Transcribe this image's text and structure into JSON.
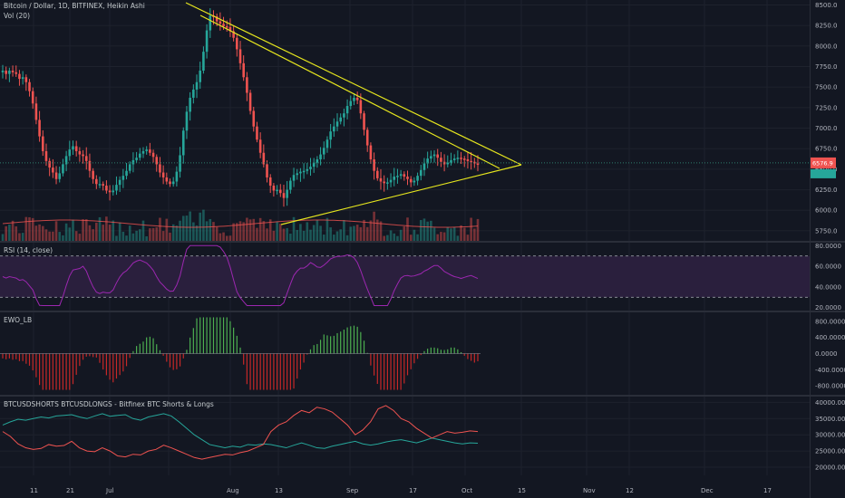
{
  "colors": {
    "background": "#131722",
    "grid": "#1e222d",
    "up": "#26a69a",
    "down": "#ef5350",
    "trendline": "#e6e61e",
    "rsi": "#9c27b0",
    "rsi_band": "#2a1f3d",
    "shorts": "#ef5350",
    "longs": "#26a69a",
    "volume_ma": "#ef5350"
  },
  "panes": {
    "price": {
      "title": "Bitcoin / Dollar, 1D, BITFINEX, Heikin Ashi",
      "subtitle": "Vol (20)"
    },
    "rsi": {
      "title": "RSI (14, close)"
    },
    "ewo": {
      "title": "EWO_LB"
    },
    "shorts": {
      "title": "BTCUSDSHORTS BTCUSDLONGS - Bitfinex BTC Shorts & Longs"
    }
  },
  "last_price_label": "6576.9",
  "x_axis": {
    "labels": [
      "11",
      "21",
      "Jul",
      "Aug",
      "13",
      "Sep",
      "17",
      "Oct",
      "15",
      "Nov",
      "12",
      "Dec",
      "17"
    ]
  },
  "chart_data": [
    {
      "type": "candlestick",
      "title": "Bitcoin / Dollar, 1D, BITFINEX, Heikin Ashi",
      "y_ticks": [
        "8500.0",
        "8250.0",
        "8000.0",
        "7750.0",
        "7500.0",
        "7250.0",
        "7000.0",
        "6750.0",
        "6500.0",
        "6250.0",
        "6000.0",
        "5750.0"
      ],
      "ylim": [
        5650,
        8560
      ],
      "closes": [
        7700,
        7660,
        7700,
        7680,
        7660,
        7600,
        7620,
        7560,
        7450,
        7300,
        7100,
        6900,
        6720,
        6600,
        6520,
        6460,
        6380,
        6450,
        6560,
        6660,
        6740,
        6780,
        6720,
        6680,
        6660,
        6600,
        6480,
        6380,
        6320,
        6320,
        6300,
        6240,
        6220,
        6240,
        6310,
        6370,
        6420,
        6480,
        6560,
        6610,
        6640,
        6690,
        6720,
        6740,
        6700,
        6650,
        6560,
        6460,
        6400,
        6350,
        6320,
        6350,
        6470,
        6670,
        6970,
        7200,
        7370,
        7470,
        7560,
        7700,
        7930,
        8190,
        8370,
        8360,
        8300,
        8270,
        8240,
        8230,
        8180,
        8100,
        7960,
        7790,
        7620,
        7430,
        7210,
        7020,
        6860,
        6700,
        6560,
        6400,
        6300,
        6240,
        6250,
        6210,
        6150,
        6250,
        6360,
        6430,
        6450,
        6470,
        6480,
        6500,
        6530,
        6580,
        6620,
        6680,
        6760,
        6860,
        6960,
        7020,
        7080,
        7130,
        7180,
        7270,
        7330,
        7370,
        7340,
        7180,
        6980,
        6790,
        6620,
        6480,
        6390,
        6350,
        6330,
        6340,
        6370,
        6410,
        6420,
        6440,
        6410,
        6380,
        6340,
        6360,
        6420,
        6490,
        6570,
        6630,
        6660,
        6680,
        6640,
        6590,
        6560,
        6580,
        6610,
        6630,
        6640,
        6630,
        6620,
        6600,
        6590,
        6570,
        6560
      ],
      "volume_ma_label": "Vol (20)"
    },
    {
      "type": "line",
      "title": "RSI (14, close)",
      "y_ticks": [
        "80.0000",
        "60.0000",
        "40.0000",
        "20.0000"
      ],
      "ylim": [
        18,
        82
      ],
      "band": [
        30,
        70
      ]
    },
    {
      "type": "bar",
      "title": "EWO_LB",
      "y_ticks": [
        "800.0000",
        "400.0000",
        "0.0000",
        "-400.0000",
        "-800.0000"
      ],
      "ylim": [
        -1000,
        1000
      ]
    },
    {
      "type": "line",
      "title": "BTCUSDSHORTS BTCUSDLONGS - Bitfinex BTC Shorts & Longs",
      "y_ticks": [
        "40000.0000",
        "35000.0000",
        "30000.0000",
        "25000.0000",
        "20000.0000"
      ],
      "ylim": [
        17500,
        41500
      ],
      "shorts": [
        31000,
        29500,
        27200,
        26000,
        25500,
        25800,
        27000,
        26500,
        26700,
        28000,
        26000,
        25000,
        24800,
        26000,
        25000,
        23500,
        23200,
        24000,
        23800,
        25000,
        25500,
        26800,
        26000,
        25000,
        24000,
        23000,
        22500,
        23000,
        23500,
        24000,
        23800,
        24500,
        25000,
        26000,
        27000,
        31000,
        33000,
        34000,
        36000,
        37500,
        36800,
        38500,
        38000,
        37000,
        35000,
        33000,
        30000,
        31500,
        34000,
        38000,
        39000,
        37500,
        35000,
        34000,
        32000,
        30500,
        29000,
        30000,
        31000,
        30500,
        30800,
        31200,
        31000
      ],
      "longs": [
        33000,
        34000,
        34800,
        34500,
        35000,
        35500,
        35200,
        35800,
        36000,
        36200,
        35500,
        35000,
        35800,
        36500,
        35700,
        36000,
        36200,
        35000,
        34500,
        35500,
        36000,
        36500,
        35800,
        34000,
        32000,
        30000,
        28500,
        27000,
        26500,
        26000,
        26500,
        26200,
        27000,
        26800,
        27200,
        27000,
        26500,
        26000,
        26800,
        27500,
        26800,
        26000,
        25800,
        26500,
        27000,
        27500,
        28000,
        27200,
        26800,
        27200,
        27800,
        28200,
        28500,
        28000,
        27500,
        28200,
        29000,
        28500,
        28000,
        27500,
        27200,
        27500,
        27400
      ]
    }
  ]
}
